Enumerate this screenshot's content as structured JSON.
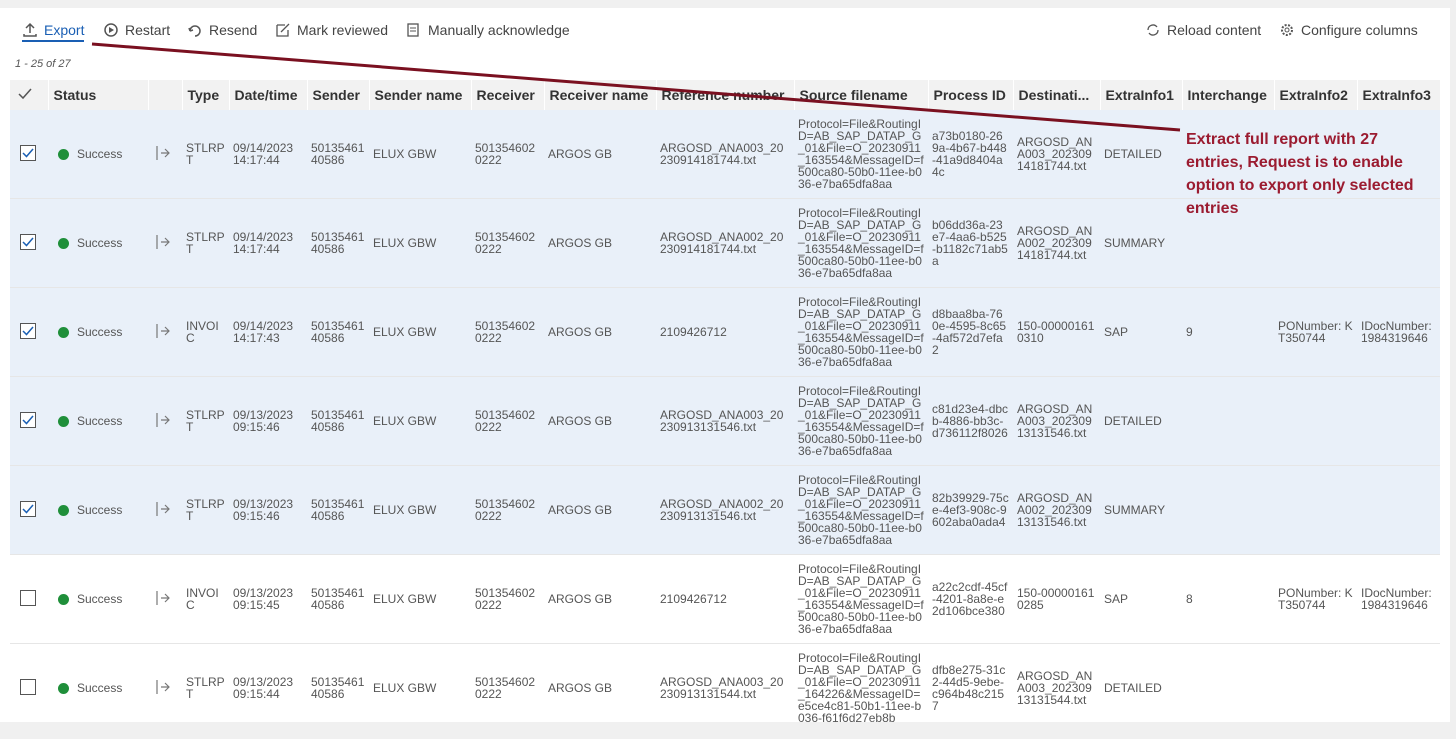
{
  "toolbar": {
    "left": [
      "Export",
      "Restart",
      "Resend",
      "Mark reviewed",
      "Manually acknowledge"
    ],
    "right": [
      "Reload content",
      "Configure columns"
    ]
  },
  "count": "1 - 25 of 27",
  "table": {
    "columns": [
      "Status",
      "Type",
      "Date/time",
      "Sender",
      "Sender name",
      "Receiver",
      "Receiver name",
      "Reference number",
      "Source filename",
      "Process ID",
      "Destinati...",
      "ExtraInfo1",
      "Interchange",
      "ExtraInfo2",
      "ExtraInfo3"
    ],
    "rows": [
      {
        "selected": true,
        "cells": [
          "Success",
          "STLRPT",
          "09/14/2023 14:17:44",
          "5013546140586",
          "ELUX GBW",
          "5013546020222",
          "ARGOS GB",
          "ARGOSD_ANA003_20230914181744.txt",
          "Protocol=File&RoutingID=AB_SAP_DATAP_G_01&File=O_20230911_163554&MessageID=f500ca80-50b0-11ee-b036-e7ba65dfa8aa",
          "a73b0180-269a-4b67-b448-41a9d8404a4c",
          "ARGOSD_ANA003_20230914181744.txt",
          "DETAILED",
          null,
          null,
          null
        ]
      },
      {
        "selected": true,
        "cells": [
          "Success",
          "STLRPT",
          "09/14/2023 14:17:44",
          "5013546140586",
          "ELUX GBW",
          "5013546020222",
          "ARGOS GB",
          "ARGOSD_ANA002_20230914181744.txt",
          "Protocol=File&RoutingID=AB_SAP_DATAP_G_01&File=O_20230911_163554&MessageID=f500ca80-50b0-11ee-b036-e7ba65dfa8aa",
          "b06dd36a-23e7-4aa6-b525-b1182c71ab5a",
          "ARGOSD_ANA002_20230914181744.txt",
          "SUMMARY",
          null,
          null,
          null
        ]
      },
      {
        "selected": true,
        "cells": [
          "Success",
          "INVOIC",
          "09/14/2023 14:17:43",
          "5013546140586",
          "ELUX GBW",
          "5013546020222",
          "ARGOS GB",
          "2109426712",
          "Protocol=File&RoutingID=AB_SAP_DATAP_G_01&File=O_20230911_163554&MessageID=f500ca80-50b0-11ee-b036-e7ba65dfa8aa",
          "d8baa8ba-760e-4595-8c65-4af572d7efa2",
          "150-000001610310",
          "SAP",
          "9",
          "PONumber: KT350744",
          "IDocNumber: 1984319646"
        ]
      },
      {
        "selected": true,
        "cells": [
          "Success",
          "STLRPT",
          "09/13/2023 09:15:46",
          "5013546140586",
          "ELUX GBW",
          "5013546020222",
          "ARGOS GB",
          "ARGOSD_ANA003_20230913131546.txt",
          "Protocol=File&RoutingID=AB_SAP_DATAP_G_01&File=O_20230911_163554&MessageID=f500ca80-50b0-11ee-b036-e7ba65dfa8aa",
          "c81d23e4-dbcb-4886-bb3c-d736112f8026",
          "ARGOSD_ANA003_20230913131546.txt",
          "DETAILED",
          null,
          null,
          null
        ]
      },
      {
        "selected": true,
        "cells": [
          "Success",
          "STLRPT",
          "09/13/2023 09:15:46",
          "5013546140586",
          "ELUX GBW",
          "5013546020222",
          "ARGOS GB",
          "ARGOSD_ANA002_20230913131546.txt",
          "Protocol=File&RoutingID=AB_SAP_DATAP_G_01&File=O_20230911_163554&MessageID=f500ca80-50b0-11ee-b036-e7ba65dfa8aa",
          "82b39929-75ce-4ef3-908c-9602aba0ada4",
          "ARGOSD_ANA002_20230913131546.txt",
          "SUMMARY",
          null,
          null,
          null
        ]
      },
      {
        "selected": false,
        "cells": [
          "Success",
          "INVOIC",
          "09/13/2023 09:15:45",
          "5013546140586",
          "ELUX GBW",
          "5013546020222",
          "ARGOS GB",
          "2109426712",
          "Protocol=File&RoutingID=AB_SAP_DATAP_G_01&File=O_20230911_163554&MessageID=f500ca80-50b0-11ee-b036-e7ba65dfa8aa",
          "a22c2cdf-45cf-4201-8a8e-e2d106bce380",
          "150-000001610285",
          "SAP",
          "8",
          "PONumber: KT350744",
          "IDocNumber: 1984319646"
        ]
      },
      {
        "selected": false,
        "cells": [
          "Success",
          "STLRPT",
          "09/13/2023 09:15:44",
          "5013546140586",
          "ELUX GBW",
          "5013546020222",
          "ARGOS GB",
          "ARGOSD_ANA003_20230913131544.txt",
          "Protocol=File&RoutingID=AB_SAP_DATAP_G_01&File=O_20230911_164226&MessageID=e5ce4c81-50b1-11ee-b036-f61f6d27eb8b",
          "dfb8e275-31c2-44d5-9ebe-c964b48c2157",
          "ARGOSD_ANA003_20230913131544.txt",
          "DETAILED",
          null,
          null,
          null
        ]
      }
    ]
  },
  "annotation": "Extract full report with 27 entries, Request is to enable option to export only selected entries"
}
